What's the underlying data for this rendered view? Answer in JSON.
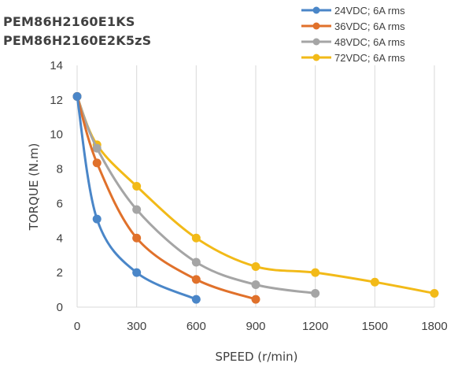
{
  "chart_data": {
    "type": "line",
    "title_lines": [
      "PEM86H2160E1KS",
      "PEM86H2160E2K5zS"
    ],
    "xlabel": "SPEED (r/min)",
    "ylabel": "TORQUE (N.m)",
    "xlim": [
      0,
      1800
    ],
    "ylim": [
      0,
      14
    ],
    "xticks": [
      0,
      300,
      600,
      900,
      1200,
      1500,
      1800
    ],
    "yticks": [
      0,
      2,
      4,
      6,
      8,
      10,
      12,
      14
    ],
    "grid": "vertical",
    "legend_position": "top-right",
    "series": [
      {
        "name": "24VDC; 6A rms",
        "color": "#4A86C8",
        "x": [
          0,
          100,
          300,
          600
        ],
        "y": [
          12.2,
          5.1,
          2.0,
          0.45
        ]
      },
      {
        "name": "36VDC; 6A rms",
        "color": "#E0712B",
        "x": [
          0,
          100,
          300,
          600,
          900
        ],
        "y": [
          12.2,
          8.35,
          4.0,
          1.6,
          0.45
        ]
      },
      {
        "name": "48VDC; 6A rms",
        "color": "#A5A5A5",
        "x": [
          0,
          100,
          300,
          600,
          900,
          1200
        ],
        "y": [
          12.2,
          9.2,
          5.65,
          2.6,
          1.3,
          0.8
        ]
      },
      {
        "name": "72VDC; 6A rms",
        "color": "#F2BA18",
        "x": [
          0,
          100,
          300,
          600,
          900,
          1200,
          1500,
          1800
        ],
        "y": [
          12.2,
          9.4,
          7.0,
          4.0,
          2.35,
          2.0,
          1.45,
          0.8
        ]
      }
    ]
  }
}
